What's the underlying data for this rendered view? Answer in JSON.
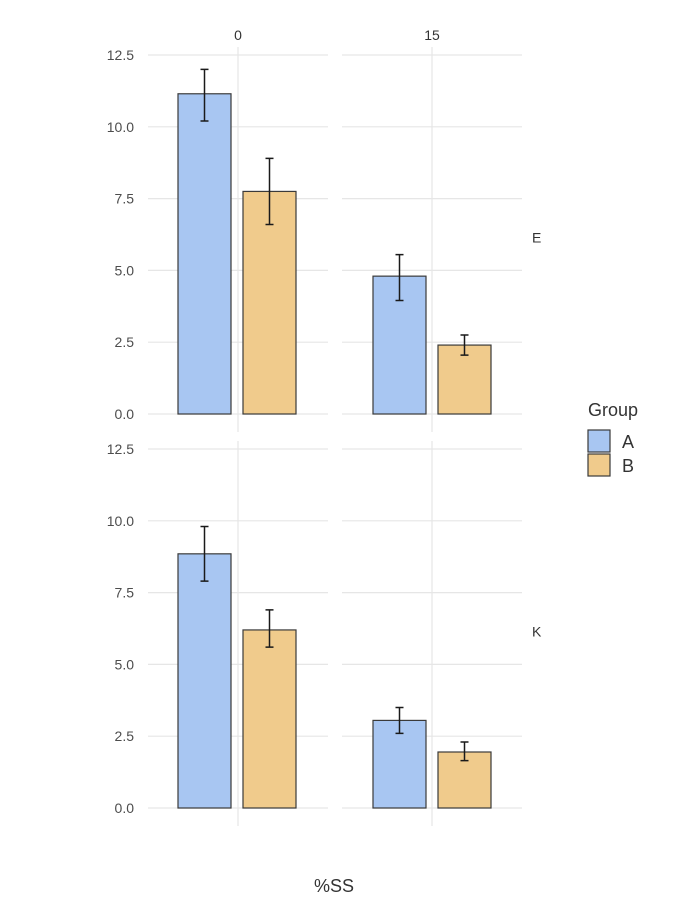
{
  "chart_data": {
    "type": "bar",
    "xlabel": "%SS",
    "ylabel": "",
    "ylim": [
      0,
      12.5
    ],
    "yticks": [
      "0.0",
      "2.5",
      "5.0",
      "7.5",
      "10.0",
      "12.5"
    ],
    "column_facets": [
      "0",
      "15"
    ],
    "row_facets": [
      "E",
      "K"
    ],
    "legend": {
      "title": "Group",
      "position": "right",
      "entries": [
        {
          "name": "A",
          "color": "#a8c6f2"
        },
        {
          "name": "B",
          "color": "#f0cb8c"
        }
      ]
    },
    "grid": true,
    "panels": [
      {
        "row": "E",
        "column": "0",
        "bars": [
          {
            "group": "A",
            "value": 11.15,
            "err_low": 10.2,
            "err_high": 12.0
          },
          {
            "group": "B",
            "value": 7.75,
            "err_low": 6.6,
            "err_high": 8.9
          }
        ]
      },
      {
        "row": "E",
        "column": "15",
        "bars": [
          {
            "group": "A",
            "value": 4.8,
            "err_low": 3.95,
            "err_high": 5.55
          },
          {
            "group": "B",
            "value": 2.4,
            "err_low": 2.05,
            "err_high": 2.75
          }
        ]
      },
      {
        "row": "K",
        "column": "0",
        "bars": [
          {
            "group": "A",
            "value": 8.85,
            "err_low": 7.9,
            "err_high": 9.8
          },
          {
            "group": "B",
            "value": 6.2,
            "err_low": 5.6,
            "err_high": 6.9
          }
        ]
      },
      {
        "row": "K",
        "column": "15",
        "bars": [
          {
            "group": "A",
            "value": 3.05,
            "err_low": 2.6,
            "err_high": 3.5
          },
          {
            "group": "B",
            "value": 1.95,
            "err_low": 1.65,
            "err_high": 2.3
          }
        ]
      }
    ]
  }
}
